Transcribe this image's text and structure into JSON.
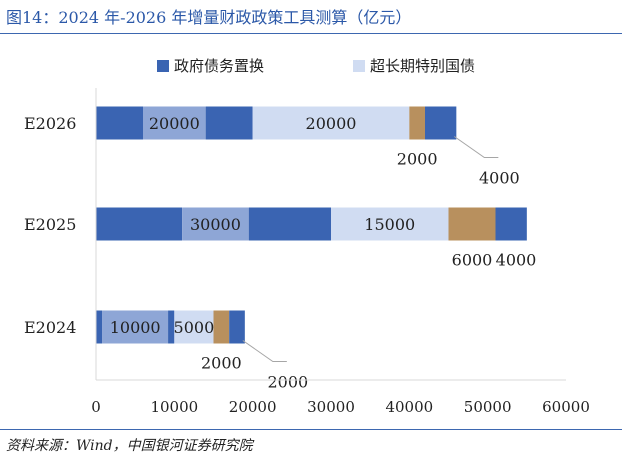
{
  "title": "图14：2024 年-2026 年增量财政政策工具测算（亿元）",
  "source": "资料来源：Wind，中国银河证券研究院",
  "chart_data": {
    "type": "bar",
    "orientation": "horizontal",
    "stacked": true,
    "categories": [
      "E2024",
      "E2025",
      "E2026"
    ],
    "legend": [
      {
        "name": "政府债务置换",
        "color": "#3a64b2"
      },
      {
        "name": "超长期特别国债",
        "color": "#d0dcf2"
      }
    ],
    "legend_position": "top",
    "xlim": [
      0,
      60000
    ],
    "xticks": [
      0,
      10000,
      20000,
      30000,
      40000,
      50000,
      60000
    ],
    "segments": {
      "E2026": [
        {
          "value": 6000,
          "color": "#3a64b2"
        },
        {
          "value": 8000,
          "color": "#8ea6d6",
          "label": "20000"
        },
        {
          "value": 6000,
          "color": "#3a64b2"
        },
        {
          "value": 20000,
          "color": "#d0dcf2",
          "label": "20000"
        },
        {
          "value": 2000,
          "color": "#b8905e",
          "label": "2000",
          "label_pos": "below"
        },
        {
          "value": 4000,
          "color": "#3a64b2",
          "label": "4000",
          "label_pos": "leader"
        }
      ],
      "E2025": [
        {
          "value": 11000,
          "color": "#3a64b2"
        },
        {
          "value": 8500,
          "color": "#8ea6d6",
          "label": "30000"
        },
        {
          "value": 10500,
          "color": "#3a64b2"
        },
        {
          "value": 15000,
          "color": "#d0dcf2",
          "label": "15000"
        },
        {
          "value": 6000,
          "color": "#b8905e",
          "label": "6000",
          "label_pos": "below"
        },
        {
          "value": 4000,
          "color": "#3a64b2",
          "label": "4000",
          "label_pos": "below"
        }
      ],
      "E2024": [
        {
          "value": 800,
          "color": "#3a64b2"
        },
        {
          "value": 8400,
          "color": "#8ea6d6",
          "label": "10000"
        },
        {
          "value": 800,
          "color": "#3a64b2"
        },
        {
          "value": 5000,
          "color": "#d0dcf2",
          "label": "5000"
        },
        {
          "value": 2000,
          "color": "#b8905e",
          "label": "2000",
          "label_pos": "below"
        },
        {
          "value": 2000,
          "color": "#3a64b2",
          "label": "2000",
          "label_pos": "leader"
        }
      ]
    }
  }
}
